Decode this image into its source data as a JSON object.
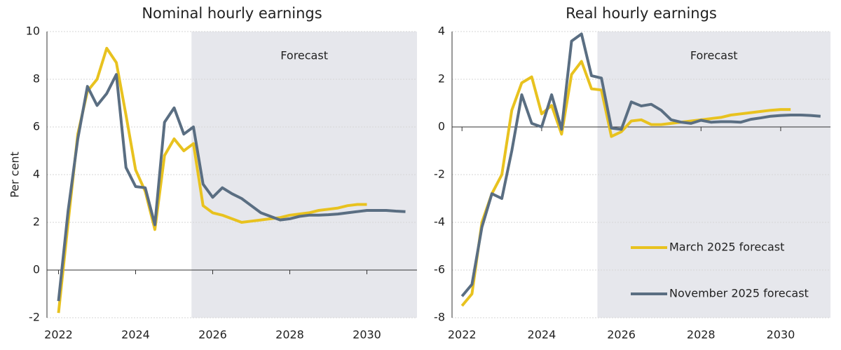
{
  "chart_data": [
    {
      "type": "line",
      "title": "Nominal hourly earnings",
      "y_label": "Per cent",
      "annotation": "Forecast",
      "forecast_start": 2025.45,
      "x": [
        2022,
        2022.25,
        2022.5,
        2022.75,
        2023,
        2023.25,
        2023.5,
        2023.75,
        2024,
        2024.25,
        2024.5,
        2024.75,
        2025,
        2025.25,
        2025.5,
        2025.75,
        2026,
        2026.25,
        2026.5,
        2026.75,
        2027,
        2027.25,
        2027.5,
        2027.75,
        2028,
        2028.25,
        2028.5,
        2028.75,
        2029,
        2029.25,
        2029.5,
        2029.75,
        2030,
        2030.25,
        2030.5,
        2030.75,
        2031
      ],
      "series": [
        {
          "name": "March 2025 forecast",
          "color": "#e8c21f",
          "values": [
            -1.8,
            2.0,
            5.7,
            7.5,
            8.0,
            9.3,
            8.7,
            6.5,
            4.2,
            3.3,
            1.7,
            4.8,
            5.5,
            5.0,
            5.3,
            2.7,
            2.4,
            2.3,
            2.15,
            2.0,
            2.05,
            2.1,
            2.15,
            2.2,
            2.3,
            2.35,
            2.4,
            2.5,
            2.55,
            2.6,
            2.7,
            2.75,
            2.75,
            null,
            null,
            null,
            null
          ]
        },
        {
          "name": "November 2025 forecast",
          "color": "#5a6e82",
          "values": [
            -1.3,
            2.5,
            5.5,
            7.7,
            6.9,
            7.4,
            8.2,
            4.3,
            3.5,
            3.45,
            1.9,
            6.2,
            6.8,
            5.7,
            6.0,
            3.6,
            3.05,
            3.45,
            3.2,
            3.0,
            2.7,
            2.4,
            2.25,
            2.1,
            2.15,
            2.25,
            2.3,
            2.3,
            2.32,
            2.35,
            2.4,
            2.45,
            2.5,
            2.5,
            2.5,
            2.47,
            2.45
          ]
        }
      ],
      "xlim": [
        2021.7,
        2031.3
      ],
      "xticks": [
        2022,
        2024,
        2026,
        2028,
        2030
      ],
      "ylim": [
        -2,
        10
      ],
      "yticks": [
        -2,
        0,
        2,
        4,
        6,
        8,
        10
      ],
      "grid": true
    },
    {
      "type": "line",
      "title": "Real hourly earnings",
      "annotation": "Forecast",
      "forecast_start": 2025.4,
      "legend": "lower right",
      "x": [
        2022,
        2022.25,
        2022.5,
        2022.75,
        2023,
        2023.25,
        2023.5,
        2023.75,
        2024,
        2024.25,
        2024.5,
        2024.75,
        2025,
        2025.25,
        2025.5,
        2025.75,
        2026,
        2026.25,
        2026.5,
        2026.75,
        2027,
        2027.25,
        2027.5,
        2027.75,
        2028,
        2028.25,
        2028.5,
        2028.75,
        2029,
        2029.25,
        2029.5,
        2029.75,
        2030,
        2030.25,
        2030.5,
        2030.75,
        2031
      ],
      "series": [
        {
          "name": "March 2025 forecast",
          "color": "#e8c21f",
          "values": [
            -7.5,
            -7.0,
            -4.0,
            -2.8,
            -2.0,
            0.7,
            1.85,
            2.1,
            0.55,
            0.9,
            -0.3,
            2.2,
            2.75,
            1.6,
            1.55,
            -0.4,
            -0.2,
            0.25,
            0.3,
            0.1,
            0.1,
            0.15,
            0.2,
            0.25,
            0.3,
            0.35,
            0.4,
            0.5,
            0.55,
            0.6,
            0.65,
            0.7,
            0.73,
            0.73,
            null,
            null,
            null
          ]
        },
        {
          "name": "November 2025 forecast",
          "color": "#5a6e82",
          "values": [
            -7.1,
            -6.6,
            -4.2,
            -2.8,
            -3.0,
            -1.0,
            1.35,
            0.15,
            0.0,
            1.35,
            -0.1,
            3.6,
            3.9,
            2.15,
            2.05,
            -0.05,
            -0.1,
            1.05,
            0.88,
            0.95,
            0.7,
            0.3,
            0.2,
            0.15,
            0.28,
            0.2,
            0.22,
            0.22,
            0.2,
            0.32,
            0.38,
            0.45,
            0.48,
            0.5,
            0.5,
            0.48,
            0.45
          ]
        }
      ],
      "xlim": [
        2021.75,
        2031.25
      ],
      "xticks": [
        2022,
        2024,
        2026,
        2028,
        2030
      ],
      "ylim": [
        -8,
        4
      ],
      "yticks": [
        -8,
        -6,
        -4,
        -2,
        0,
        2,
        4
      ],
      "grid": true
    }
  ]
}
